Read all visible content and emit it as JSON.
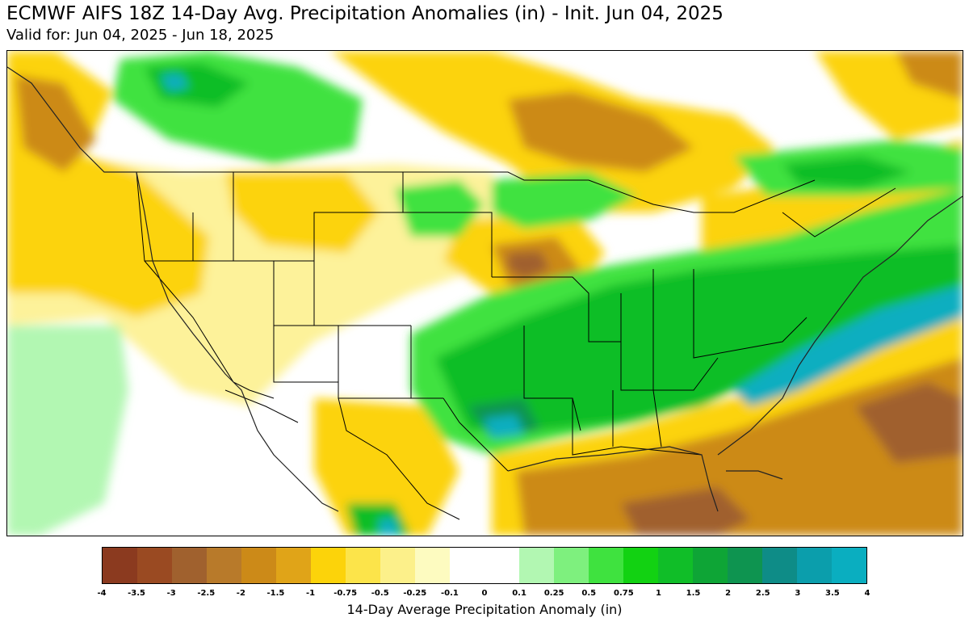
{
  "header": {
    "title": "ECMWF AIFS 18Z 14-Day Avg. Precipitation Anomalies (in) - Init. Jun 04, 2025",
    "subtitle": "Valid for: Jun 04, 2025 - Jun 18, 2025"
  },
  "colorbar": {
    "label": "14-Day Average Precipitation Anomaly (in)",
    "ticks": [
      "-4",
      "-3.5",
      "-3",
      "-2.5",
      "-2",
      "-1.5",
      "-1",
      "-0.75",
      "-0.5",
      "-0.25",
      "-0.1",
      "0",
      "0.1",
      "0.25",
      "0.5",
      "0.75",
      "1",
      "1.5",
      "2",
      "2.5",
      "3",
      "3.5",
      "4"
    ],
    "colors": [
      "#8b3a1f",
      "#9a4a22",
      "#a0612e",
      "#b87a2a",
      "#cc8a18",
      "#e0a418",
      "#fcd30a",
      "#fce44a",
      "#fcf08a",
      "#fdfbc0",
      "#ffffff",
      "#ffffff",
      "#b2f7b2",
      "#7ef07e",
      "#3fe23f",
      "#12d212",
      "#10be28",
      "#0ea536",
      "#0e9450",
      "#0e8c87",
      "#0b9eac",
      "#0aaec0"
    ]
  },
  "map": {
    "colors": {
      "dry_strong": "#a0612e",
      "dry_moderate": "#cc8a18",
      "dry_mild": "#fcd30a",
      "dry_slight": "#fdf29a",
      "wet_slight": "#b2f7b2",
      "wet_mild": "#3fe23f",
      "wet_moderate": "#10be28",
      "wet_strong": "#0e9450",
      "wet_max": "#0aaec0",
      "borders": "#000000"
    }
  }
}
